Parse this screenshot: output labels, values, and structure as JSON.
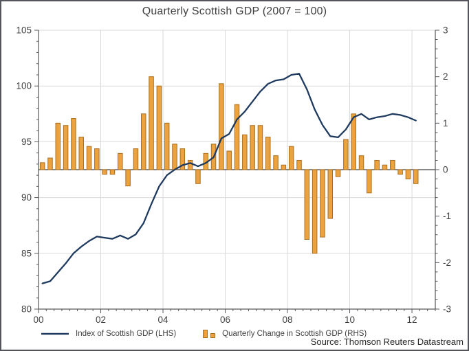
{
  "window": {
    "title": "Quarterly Scottish GDP (2007 = 100)"
  },
  "source": "Source: Thomson Reuters Datastream",
  "legend": {
    "items": [
      {
        "label": "Index of Scottish GDP (LHS)",
        "swatch": "line"
      },
      {
        "label": "Quarterly Change in Scottish GDP (RHS)",
        "swatch": "bars"
      }
    ]
  },
  "colors": {
    "line": "#1f3a5f",
    "bar_fill": "#eba23f",
    "bar_border": "#aa6e1f",
    "grid": "#d9d9d9",
    "axis": "#56575b",
    "zero_line": "#3d3d3d",
    "tick_text": "#3f3f3f",
    "background": "#ffffff",
    "frame_border": "#54555a"
  },
  "chart_data": {
    "type": "combo_line_bar",
    "title": "Quarterly Scottish GDP (2007 = 100)",
    "source": "Source: Thomson Reuters Datastream",
    "legend_position": "bottom",
    "x_unit": "quarter",
    "categories": [
      "2000Q1",
      "2000Q2",
      "2000Q3",
      "2000Q4",
      "2001Q1",
      "2001Q2",
      "2001Q3",
      "2001Q4",
      "2002Q1",
      "2002Q2",
      "2002Q3",
      "2002Q4",
      "2003Q1",
      "2003Q2",
      "2003Q3",
      "2003Q4",
      "2004Q1",
      "2004Q2",
      "2004Q3",
      "2004Q4",
      "2005Q1",
      "2005Q2",
      "2005Q3",
      "2005Q4",
      "2006Q1",
      "2006Q2",
      "2006Q3",
      "2006Q4",
      "2007Q1",
      "2007Q2",
      "2007Q3",
      "2007Q4",
      "2008Q1",
      "2008Q2",
      "2008Q3",
      "2008Q4",
      "2009Q1",
      "2009Q2",
      "2009Q3",
      "2009Q4",
      "2010Q1",
      "2010Q2",
      "2010Q3",
      "2010Q4",
      "2011Q1",
      "2011Q2",
      "2011Q3",
      "2011Q4",
      "2012Q1"
    ],
    "series": [
      {
        "name": "Index of Scottish GDP (LHS)",
        "type": "line",
        "axis": "left",
        "values": [
          82.3,
          82.5,
          83.3,
          84.1,
          85.0,
          85.6,
          86.1,
          86.5,
          86.4,
          86.3,
          86.6,
          86.3,
          86.7,
          87.7,
          89.4,
          91.0,
          92.0,
          92.5,
          92.9,
          93.1,
          92.8,
          93.1,
          93.6,
          95.3,
          95.7,
          97.0,
          97.7,
          98.6,
          99.5,
          100.2,
          100.5,
          100.6,
          101.0,
          101.1,
          99.7,
          97.9,
          96.5,
          95.5,
          95.4,
          96.1,
          97.2,
          97.5,
          97.0,
          97.2,
          97.3,
          97.5,
          97.4,
          97.2,
          96.9
        ]
      },
      {
        "name": "Quarterly Change in Scottish GDP (RHS)",
        "type": "bar",
        "axis": "right",
        "values": [
          0.15,
          0.25,
          1.0,
          0.95,
          1.1,
          0.7,
          0.5,
          0.45,
          -0.1,
          -0.1,
          0.35,
          -0.35,
          0.45,
          1.2,
          2.0,
          1.8,
          1.0,
          0.55,
          0.45,
          0.2,
          -0.3,
          0.35,
          0.55,
          1.85,
          0.4,
          1.4,
          0.75,
          0.95,
          0.95,
          0.7,
          0.3,
          0.1,
          0.5,
          0.2,
          -1.5,
          -1.8,
          -1.45,
          -1.05,
          -0.15,
          0.65,
          1.2,
          0.3,
          -0.5,
          0.2,
          0.1,
          0.2,
          -0.1,
          -0.2,
          -0.3
        ]
      }
    ],
    "left_axis": {
      "min": 80,
      "max": 105,
      "major_ticks": [
        105,
        100,
        95,
        90,
        85,
        80
      ],
      "minor_step": 1
    },
    "right_axis": {
      "min": -3,
      "max": 3,
      "major_ticks": [
        3,
        2,
        1,
        0,
        -1,
        -2,
        -3
      ],
      "minor_step": 0.2
    },
    "x_axis": {
      "min": 2000,
      "max": 2012.75,
      "major_tick_years": [
        2000,
        2002,
        2004,
        2006,
        2008,
        2010,
        2012
      ],
      "tick_labels": [
        "00",
        "02",
        "04",
        "06",
        "08",
        "10",
        "12"
      ],
      "minor_step_years": 0.25
    },
    "gridlines": {
      "horizontal_at": [
        105,
        100,
        95,
        90,
        85
      ],
      "vertical_at": [
        2002,
        2004,
        2006,
        2008,
        2010,
        2012
      ]
    },
    "zero_line_right_axis": 0
  }
}
